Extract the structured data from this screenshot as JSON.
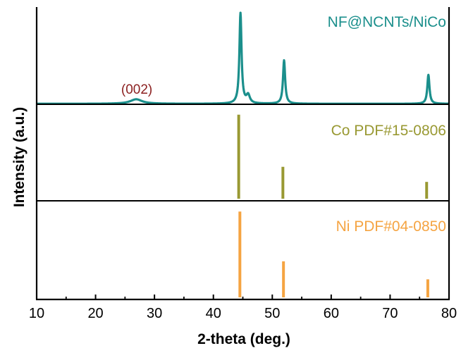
{
  "chart_data": {
    "type": "line",
    "xlabel": "2-theta (deg.)",
    "ylabel": "Intensity (a.u.)",
    "xlim": [
      10,
      80
    ],
    "xticks": [
      "10",
      "20",
      "30",
      "40",
      "50",
      "60",
      "70",
      "80"
    ],
    "grid": false,
    "panels": [
      {
        "name": "NF@NCNTs/NiCo",
        "color": "#1b8f8c",
        "kind": "pattern",
        "baseline": 0.1,
        "peaks": [
          {
            "x": 26.9,
            "height": 0.05,
            "width": 1.2
          },
          {
            "x": 44.6,
            "height": 1.0,
            "width": 0.22
          },
          {
            "x": 45.9,
            "height": 0.09,
            "width": 0.35
          },
          {
            "x": 52.0,
            "height": 0.48,
            "width": 0.22
          },
          {
            "x": 76.5,
            "height": 0.32,
            "width": 0.22
          }
        ],
        "annotations": [
          {
            "text": "(002)",
            "x": 27.0,
            "color": "#8b1f1f"
          }
        ]
      },
      {
        "name": "Co PDF#15-0806",
        "color": "#999933",
        "kind": "sticks",
        "sticks": [
          {
            "x": 44.3,
            "value": 100
          },
          {
            "x": 51.8,
            "value": 38
          },
          {
            "x": 76.2,
            "value": 20
          }
        ]
      },
      {
        "name": "Ni PDF#04-0850",
        "color": "#f5a442",
        "kind": "sticks",
        "sticks": [
          {
            "x": 44.5,
            "value": 100
          },
          {
            "x": 51.9,
            "value": 42
          },
          {
            "x": 76.4,
            "value": 21
          }
        ]
      }
    ]
  }
}
